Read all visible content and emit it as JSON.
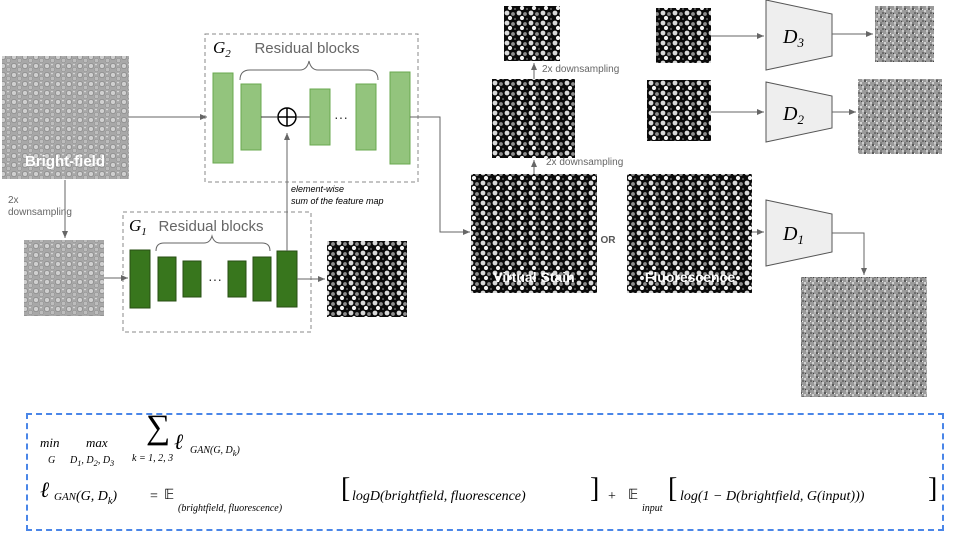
{
  "labels": {
    "bright_field": "Bright-field",
    "downsampling_left_1": "2x",
    "downsampling_left_2": "downsampling",
    "g2_letter": "G",
    "g2_sub": "2",
    "g1_letter": "G",
    "g1_sub": "1",
    "residual_blocks_top": "Residual blocks",
    "residual_blocks_bottom": "Residual blocks",
    "ellipsis": "···",
    "elementwise_1": "element-wise",
    "elementwise_2": "sum of the feature map",
    "downsampling_top": "2x downsampling",
    "downsampling_mid": "2x downsampling",
    "virtual_stain": "Virtual Stain",
    "or": "OR",
    "fluorescence": "Fluorescence",
    "d_letter": "D",
    "d3_sub": "3",
    "d2_sub": "2",
    "d1_sub": "1"
  },
  "formula": {
    "min": "min",
    "min_sub": "G",
    "max": "max",
    "max_sub": "D",
    "max_sub_1": "1",
    "max_sub_2": "2",
    "max_sub_3": "3",
    "sum": "∑",
    "sum_sub": "k = 1, 2, 3",
    "ell": "ℓ",
    "gan_sub": "GAN",
    "gan_args": "(G, D",
    "gan_args_k": "k",
    "gan_args_close": ")",
    "line2_lhs": "GAN",
    "line2_args": "(G, D",
    "line2_k": "k",
    "line2_close": ")",
    "eq": "=",
    "expect": "𝔼",
    "expect_sub_1": "(brightfield, fluorescence)",
    "term1": "logD(brightfield, fluorescence)",
    "plus": "+",
    "expect_sub_2": "input",
    "term2": "log(1 − D(brightfield, G(input)))"
  }
}
